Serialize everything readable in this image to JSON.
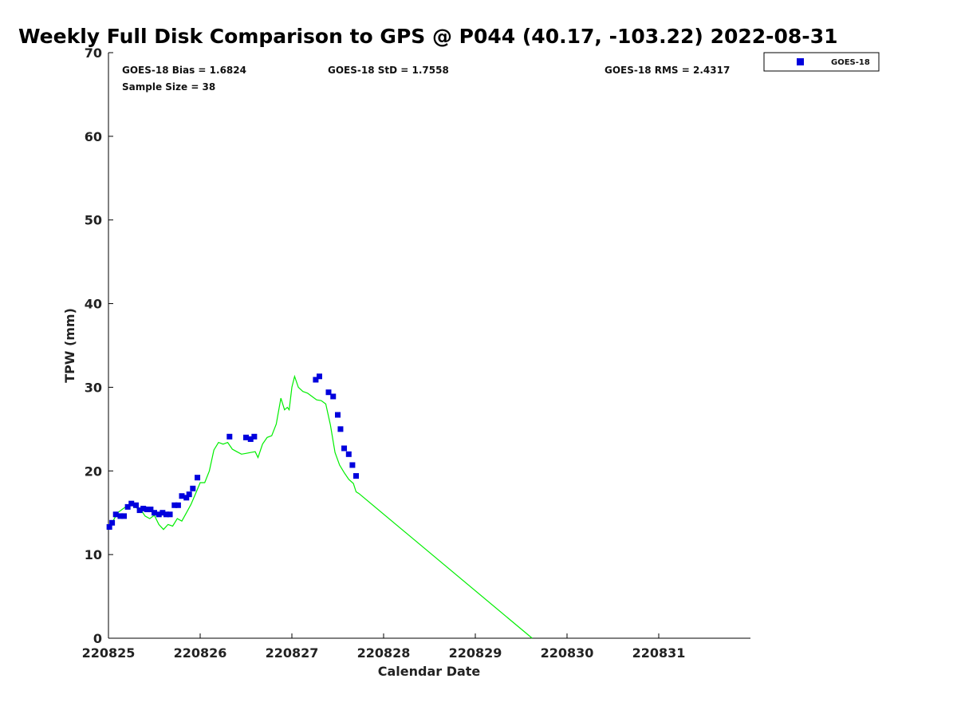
{
  "chart_data": {
    "type": "scatter",
    "title": "Weekly Full Disk Comparison to GPS @ P044 (40.17, -103.22) 2022-08-31",
    "xlabel": "Calendar Date",
    "ylabel": "TPW (mm)",
    "xlim": [
      220825,
      220832
    ],
    "ylim": [
      0,
      70
    ],
    "x_ticks": [
      220825,
      220826,
      220827,
      220828,
      220829,
      220830,
      220831
    ],
    "x_tick_labels": [
      "220825",
      "220826",
      "220827",
      "220828",
      "220829",
      "220830",
      "220831"
    ],
    "y_ticks": [
      0,
      10,
      20,
      30,
      40,
      50,
      60,
      70
    ],
    "y_tick_labels": [
      "0",
      "10",
      "20",
      "30",
      "40",
      "50",
      "60",
      "70"
    ],
    "grid": false,
    "legend_position": "top-right, outside plot",
    "stats": {
      "bias": "GOES-18 Bias = 1.6824",
      "std": "GOES-18 StD = 1.7558",
      "rms": "GOES-18 RMS = 2.4317",
      "sample": "Sample Size = 38"
    },
    "series": [
      {
        "name": "GOES-18",
        "kind": "scatter",
        "marker": "square",
        "color": "#0000dd",
        "points": [
          [
            220825.01,
            13.3
          ],
          [
            220825.04,
            13.8
          ],
          [
            220825.08,
            14.8
          ],
          [
            220825.13,
            14.6
          ],
          [
            220825.17,
            14.6
          ],
          [
            220825.21,
            15.7
          ],
          [
            220825.25,
            16.1
          ],
          [
            220825.3,
            15.9
          ],
          [
            220825.34,
            15.3
          ],
          [
            220825.38,
            15.5
          ],
          [
            220825.42,
            15.4
          ],
          [
            220825.46,
            15.4
          ],
          [
            220825.5,
            15.0
          ],
          [
            220825.55,
            14.8
          ],
          [
            220825.59,
            15.0
          ],
          [
            220825.63,
            14.8
          ],
          [
            220825.67,
            14.8
          ],
          [
            220825.72,
            15.9
          ],
          [
            220825.76,
            15.9
          ],
          [
            220825.8,
            17.0
          ],
          [
            220825.85,
            16.8
          ],
          [
            220825.88,
            17.2
          ],
          [
            220825.92,
            17.9
          ],
          [
            220825.97,
            19.2
          ],
          [
            220826.32,
            24.1
          ],
          [
            220826.5,
            24.0
          ],
          [
            220826.55,
            23.8
          ],
          [
            220826.59,
            24.1
          ],
          [
            220827.26,
            30.9
          ],
          [
            220827.3,
            31.3
          ],
          [
            220827.4,
            29.4
          ],
          [
            220827.45,
            28.9
          ],
          [
            220827.5,
            26.7
          ],
          [
            220827.53,
            25.0
          ],
          [
            220827.57,
            22.7
          ],
          [
            220827.62,
            22.0
          ],
          [
            220827.66,
            20.7
          ],
          [
            220827.7,
            19.4
          ]
        ]
      },
      {
        "name": "",
        "kind": "line",
        "color": "#00ee00",
        "points": [
          [
            220825.0,
            13.0
          ],
          [
            220825.05,
            14.0
          ],
          [
            220825.1,
            15.0
          ],
          [
            220825.15,
            15.4
          ],
          [
            220825.2,
            15.8
          ],
          [
            220825.25,
            16.0
          ],
          [
            220825.3,
            15.6
          ],
          [
            220825.35,
            15.4
          ],
          [
            220825.4,
            14.6
          ],
          [
            220825.45,
            14.3
          ],
          [
            220825.5,
            14.7
          ],
          [
            220825.55,
            13.6
          ],
          [
            220825.6,
            13.0
          ],
          [
            220825.65,
            13.6
          ],
          [
            220825.7,
            13.4
          ],
          [
            220825.75,
            14.3
          ],
          [
            220825.8,
            14.0
          ],
          [
            220825.85,
            15.0
          ],
          [
            220825.9,
            16.0
          ],
          [
            220825.95,
            17.3
          ],
          [
            220826.0,
            18.6
          ],
          [
            220826.05,
            18.6
          ],
          [
            220826.1,
            20.0
          ],
          [
            220826.15,
            22.5
          ],
          [
            220826.2,
            23.4
          ],
          [
            220826.25,
            23.2
          ],
          [
            220826.3,
            23.4
          ],
          [
            220826.35,
            22.6
          ],
          [
            220826.4,
            22.3
          ],
          [
            220826.45,
            22.0
          ],
          [
            220826.5,
            22.1
          ],
          [
            220826.55,
            22.2
          ],
          [
            220826.6,
            22.3
          ],
          [
            220826.63,
            21.6
          ],
          [
            220826.68,
            23.2
          ],
          [
            220826.73,
            24.0
          ],
          [
            220826.78,
            24.2
          ],
          [
            220826.83,
            25.6
          ],
          [
            220826.88,
            28.7
          ],
          [
            220826.92,
            27.3
          ],
          [
            220826.95,
            27.6
          ],
          [
            220826.97,
            27.3
          ],
          [
            220827.0,
            30.0
          ],
          [
            220827.03,
            31.3
          ],
          [
            220827.07,
            30.0
          ],
          [
            220827.12,
            29.5
          ],
          [
            220827.17,
            29.3
          ],
          [
            220827.22,
            28.9
          ],
          [
            220827.27,
            28.5
          ],
          [
            220827.32,
            28.4
          ],
          [
            220827.37,
            28.0
          ],
          [
            220827.42,
            25.5
          ],
          [
            220827.47,
            22.2
          ],
          [
            220827.52,
            20.7
          ],
          [
            220827.57,
            19.8
          ],
          [
            220827.62,
            19.0
          ],
          [
            220827.67,
            18.5
          ],
          [
            220827.7,
            17.5
          ],
          [
            220827.73,
            17.3
          ],
          [
            220829.62,
            0.0
          ]
        ]
      }
    ]
  }
}
